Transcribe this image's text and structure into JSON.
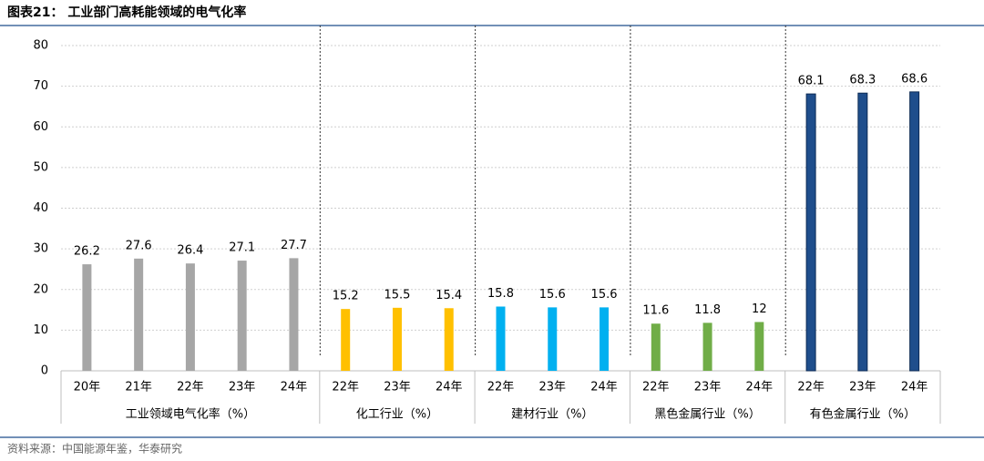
{
  "chart_data": {
    "type": "bar",
    "title": "图表21：  工业部门高耗能领域的电气化率",
    "source": "资料来源：中国能源年鉴，华泰研究",
    "ylim": [
      0,
      80
    ],
    "yticks": [
      0,
      10,
      20,
      30,
      40,
      50,
      60,
      70,
      80
    ],
    "grid": true,
    "groups": [
      {
        "name": "工业领域电气化率（%）",
        "color": "#a6a6a6",
        "categories": [
          "20年",
          "21年",
          "22年",
          "23年",
          "24年"
        ],
        "values": [
          26.2,
          27.6,
          26.4,
          27.1,
          27.7
        ]
      },
      {
        "name": "化工行业（%）",
        "color": "#ffc000",
        "categories": [
          "22年",
          "23年",
          "24年"
        ],
        "values": [
          15.2,
          15.5,
          15.4
        ]
      },
      {
        "name": "建材行业（%）",
        "color": "#00b0f0",
        "categories": [
          "22年",
          "23年",
          "24年"
        ],
        "values": [
          15.8,
          15.6,
          15.6
        ]
      },
      {
        "name": "黑色金属行业（%）",
        "color": "#70ad47",
        "categories": [
          "22年",
          "23年",
          "24年"
        ],
        "values": [
          11.6,
          11.8,
          12
        ]
      },
      {
        "name": "有色金属行业（%）",
        "color": "#1f4e8c",
        "categories": [
          "22年",
          "23年",
          "24年"
        ],
        "values": [
          68.1,
          68.3,
          68.6
        ]
      }
    ]
  }
}
